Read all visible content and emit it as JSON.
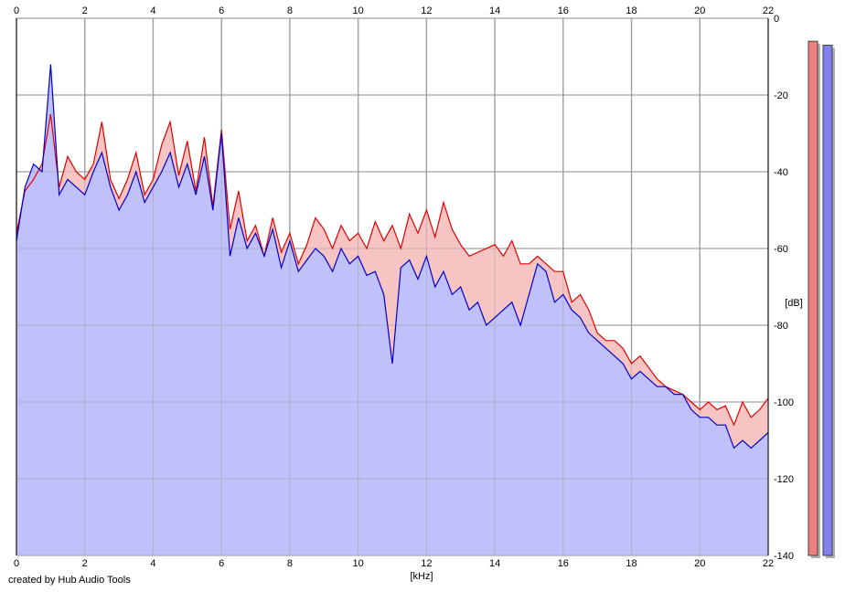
{
  "credit": "created by Hub Audio Tools",
  "chart_data": {
    "type": "area",
    "xlabel": "[kHz]",
    "ylabel": "[dB]",
    "xlim": [
      0,
      22
    ],
    "ylim": [
      -140,
      0
    ],
    "x_ticks": [
      0,
      2,
      4,
      6,
      8,
      10,
      12,
      14,
      16,
      18,
      20,
      22
    ],
    "x_tick_labels": [
      "0",
      "2",
      "4",
      "6",
      "8",
      "10",
      "12",
      "14",
      "16",
      "18",
      "20",
      "22"
    ],
    "y_ticks": [
      0,
      -20,
      -40,
      -60,
      -80,
      -100,
      -120,
      -140
    ],
    "y_tick_labels": [
      "0",
      "-20",
      "-40",
      "-60",
      "-80",
      "-100",
      "-120",
      "-140"
    ],
    "grid": true,
    "colors": {
      "red_series": "#e00000",
      "blue_series": "#0000c8",
      "fill": "#c0c0fa",
      "red_fill": "#f7c4c4",
      "grid": "#a0a0a0",
      "meter_red": "#f08080",
      "meter_blue": "#8080f0"
    },
    "series": [
      {
        "color": "#e00000",
        "x": [
          0.0,
          0.25,
          0.5,
          0.75,
          1.0,
          1.25,
          1.5,
          1.75,
          2.0,
          2.25,
          2.5,
          2.75,
          3.0,
          3.25,
          3.5,
          3.75,
          4.0,
          4.25,
          4.5,
          4.75,
          5.0,
          5.25,
          5.5,
          5.75,
          6.0,
          6.25,
          6.5,
          6.75,
          7.0,
          7.25,
          7.5,
          7.75,
          8.0,
          8.25,
          8.5,
          8.75,
          9.0,
          9.25,
          9.5,
          9.75,
          10.0,
          10.25,
          10.5,
          10.75,
          11.0,
          11.25,
          11.5,
          11.75,
          12.0,
          12.25,
          12.5,
          12.75,
          13.0,
          13.25,
          13.5,
          13.75,
          14.0,
          14.25,
          14.5,
          14.75,
          15.0,
          15.25,
          15.5,
          15.75,
          16.0,
          16.25,
          16.5,
          16.75,
          17.0,
          17.25,
          17.5,
          17.75,
          18.0,
          18.25,
          18.5,
          18.75,
          19.0,
          19.25,
          19.5,
          19.75,
          20.0,
          20.25,
          20.5,
          20.75,
          21.0,
          21.25,
          21.5,
          21.75,
          22.0
        ],
        "y": [
          -56,
          -45,
          -42,
          -38,
          -25,
          -44,
          -36,
          -40,
          -42,
          -38,
          -27,
          -42,
          -47,
          -42,
          -35,
          -46,
          -42,
          -33,
          -27,
          -41,
          -32,
          -45,
          -31,
          -49,
          -29,
          -55,
          -45,
          -58,
          -54,
          -62,
          -52,
          -61,
          -56,
          -64,
          -59,
          -52,
          -55,
          -60,
          -54,
          -58,
          -56,
          -60,
          -53,
          -58,
          -54,
          -60,
          -51,
          -56,
          -50,
          -57,
          -48,
          -55,
          -59,
          -62,
          -61,
          -60,
          -59,
          -62,
          -58,
          -64,
          -64,
          -62,
          -64,
          -66,
          -66,
          -74,
          -72,
          -76,
          -82,
          -84,
          -84,
          -86,
          -90,
          -88,
          -91,
          -94,
          -96,
          -97,
          -98,
          -100,
          -102,
          -100,
          -102,
          -101,
          -106,
          -100,
          -104,
          -102,
          -99
        ]
      },
      {
        "color": "#0000c8",
        "x": [
          0.0,
          0.25,
          0.5,
          0.75,
          1.0,
          1.25,
          1.5,
          1.75,
          2.0,
          2.25,
          2.5,
          2.75,
          3.0,
          3.25,
          3.5,
          3.75,
          4.0,
          4.25,
          4.5,
          4.75,
          5.0,
          5.25,
          5.5,
          5.75,
          6.0,
          6.25,
          6.5,
          6.75,
          7.0,
          7.25,
          7.5,
          7.75,
          8.0,
          8.25,
          8.5,
          8.75,
          9.0,
          9.25,
          9.5,
          9.75,
          10.0,
          10.25,
          10.5,
          10.75,
          11.0,
          11.25,
          11.5,
          11.75,
          12.0,
          12.25,
          12.5,
          12.75,
          13.0,
          13.25,
          13.5,
          13.75,
          14.0,
          14.25,
          14.5,
          14.75,
          15.0,
          15.25,
          15.5,
          15.75,
          16.0,
          16.25,
          16.5,
          16.75,
          17.0,
          17.25,
          17.5,
          17.75,
          18.0,
          18.25,
          18.5,
          18.75,
          19.0,
          19.25,
          19.5,
          19.75,
          20.0,
          20.25,
          20.5,
          20.75,
          21.0,
          21.25,
          21.5,
          21.75,
          22.0
        ],
        "y": [
          -58,
          -44,
          -38,
          -40,
          -12,
          -46,
          -42,
          -44,
          -46,
          -40,
          -35,
          -44,
          -50,
          -46,
          -40,
          -48,
          -44,
          -40,
          -35,
          -44,
          -38,
          -46,
          -36,
          -50,
          -30,
          -62,
          -52,
          -60,
          -56,
          -62,
          -55,
          -65,
          -58,
          -66,
          -63,
          -60,
          -62,
          -66,
          -60,
          -64,
          -62,
          -67,
          -66,
          -72,
          -90,
          -65,
          -63,
          -68,
          -62,
          -70,
          -66,
          -72,
          -70,
          -76,
          -74,
          -80,
          -78,
          -76,
          -74,
          -80,
          -72,
          -64,
          -66,
          -74,
          -72,
          -76,
          -78,
          -82,
          -84,
          -86,
          -88,
          -90,
          -94,
          -92,
          -94,
          -96,
          -96,
          -98,
          -98,
          -102,
          -104,
          -104,
          -106,
          -106,
          -112,
          -110,
          -112,
          -110,
          -108
        ]
      }
    ],
    "level_meters": [
      {
        "color": "#f08080",
        "value_db": -6
      },
      {
        "color": "#8080f0",
        "value_db": -7
      }
    ]
  }
}
